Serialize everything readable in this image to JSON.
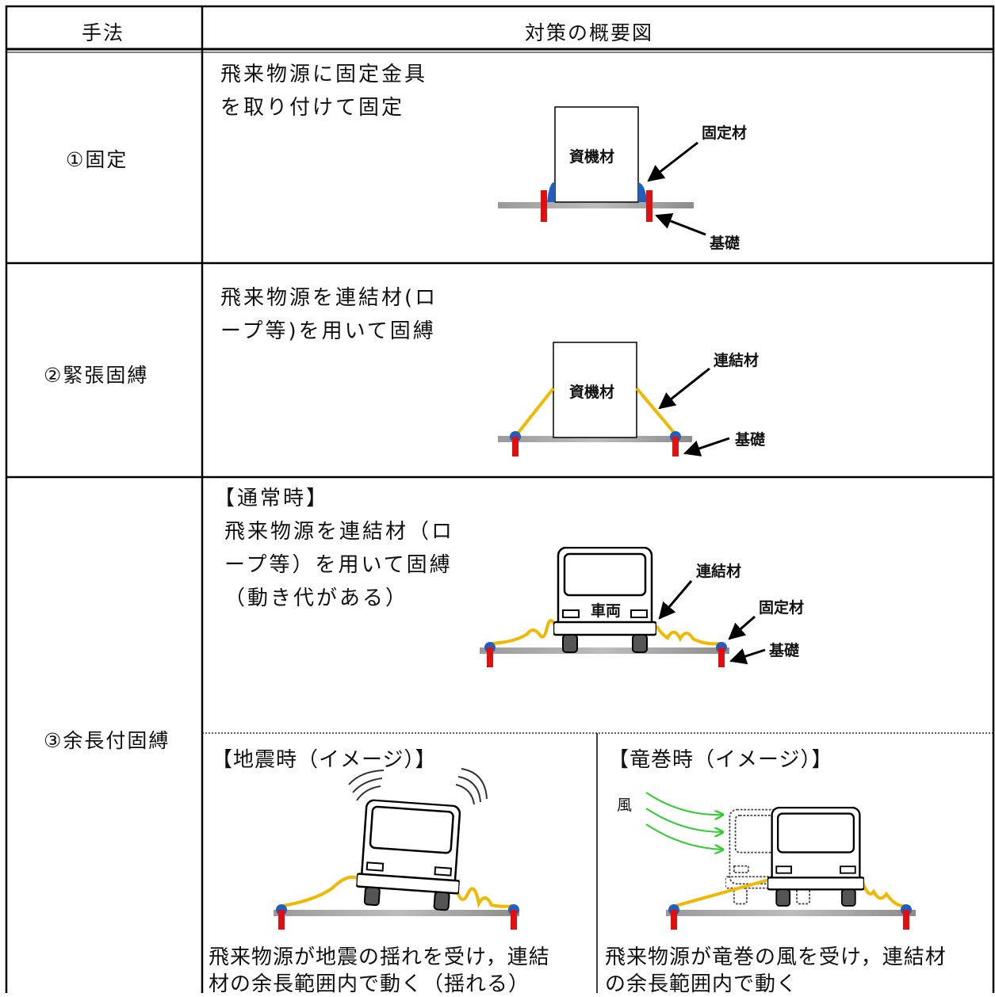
{
  "header": {
    "method": "手法",
    "overview": "対策の概要図"
  },
  "rows": [
    {
      "method": "①固定",
      "description": [
        "飛来物源に固定金具",
        "を取り付けて固定"
      ],
      "labels": {
        "object": "資機材",
        "fixture": "固定材",
        "foundation": "基礎"
      }
    },
    {
      "method": "②緊張固縛",
      "description": [
        "飛来物源を連結材(ロ",
        "ープ等)を用いて固縛"
      ],
      "labels": {
        "object": "資機材",
        "connector": "連結材",
        "foundation": "基礎"
      }
    },
    {
      "method": "③余長付固縛",
      "normal": {
        "heading": "【通常時】",
        "description": [
          "飛来物源を連結材（ロ",
          "ープ等）を用いて固縛",
          "（動き代がある）"
        ],
        "labels": {
          "vehicle": "車両",
          "connector": "連結材",
          "fixture": "固定材",
          "foundation": "基礎"
        }
      },
      "earthquake": {
        "heading": "【地震時（イメージ）】",
        "caption": [
          "飛来物源が地震の揺れを受け，連結",
          "材の余長範囲内で動く（揺れる）"
        ]
      },
      "tornado": {
        "heading": "【竜巻時（イメージ）】",
        "wind": "風",
        "caption": [
          "飛来物源が竜巻の風を受け，連結材",
          "の余長範囲内で動く"
        ]
      }
    }
  ]
}
